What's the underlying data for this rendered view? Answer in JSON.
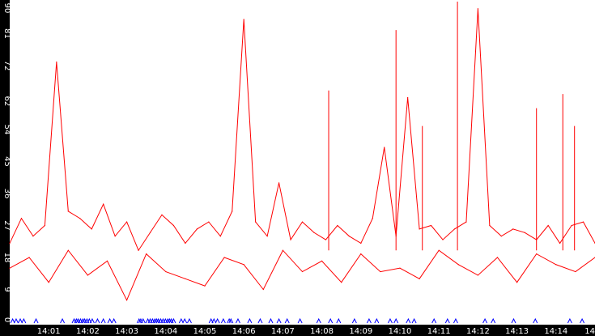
{
  "chart_data": {
    "type": "line",
    "title": "",
    "xlabel": "",
    "ylabel": "",
    "ylim": [
      0,
      90
    ],
    "y_ticks": [
      "0",
      "9",
      "18",
      "27",
      "36",
      "45",
      "54",
      "62",
      "72",
      "81",
      "90"
    ],
    "x_ticks": [
      "14:01",
      "14:02",
      "14:03",
      "14:04",
      "14:05",
      "14:06",
      "14:07",
      "14:08",
      "14:09",
      "14:10",
      "14:11",
      "14:12",
      "14:13",
      "14:14",
      "14"
    ],
    "x_range_minutes": [
      14.0,
      15.0
    ],
    "grid": false,
    "legend": "none",
    "background_color": "#ffffff",
    "axis_bar_color": "#000000",
    "axis_text_color": "#ffffff",
    "series": [
      {
        "color": "#ff0000",
        "x": [
          14.0,
          14.02,
          14.04,
          14.06,
          14.08,
          14.1,
          14.12,
          14.14,
          14.16,
          14.18,
          14.2,
          14.22,
          14.24,
          14.26,
          14.28,
          14.3,
          14.32,
          14.34,
          14.36,
          14.38,
          14.4,
          14.42,
          14.44,
          14.46,
          14.48,
          14.5,
          14.52,
          14.54,
          14.56,
          14.58,
          14.6,
          14.62,
          14.64,
          14.66,
          14.68,
          14.7,
          14.72,
          14.74,
          14.76,
          14.78,
          14.8,
          14.82,
          14.84,
          14.86,
          14.88,
          14.9,
          14.92,
          14.94,
          14.96,
          14.98,
          15.0
        ],
        "values": [
          22,
          29,
          24,
          27,
          73,
          31,
          29,
          26,
          33,
          24,
          28,
          20,
          25,
          30,
          27,
          22,
          26,
          28,
          24,
          31,
          85,
          28,
          24,
          39,
          23,
          28,
          25,
          23,
          27,
          24,
          22,
          29,
          49,
          24,
          63,
          26,
          27,
          23,
          26,
          28,
          88,
          27,
          24,
          26,
          25,
          23,
          27,
          22,
          27,
          28,
          22
        ]
      },
      {
        "color": "#ff0000",
        "x": [
          14.0,
          14.0333,
          14.0667,
          14.1,
          14.1333,
          14.1667,
          14.2,
          14.2333,
          14.2667,
          14.3,
          14.3333,
          14.3667,
          14.4,
          14.4333,
          14.4667,
          14.5,
          14.5333,
          14.5667,
          14.6,
          14.6333,
          14.6667,
          14.7,
          14.7333,
          14.7667,
          14.8,
          14.8333,
          14.8667,
          14.9,
          14.9333,
          14.9667,
          15.0
        ],
        "values": [
          15,
          18,
          11,
          20,
          13,
          17,
          6,
          19,
          14,
          12,
          10,
          18,
          16,
          9,
          20,
          14,
          17,
          11,
          19,
          14,
          15,
          12,
          20,
          16,
          13,
          18,
          11,
          19,
          16,
          14,
          18
        ]
      }
    ],
    "extra_peaks": [
      {
        "x": 14.545,
        "value": 65
      },
      {
        "x": 14.66,
        "value": 82
      },
      {
        "x": 14.705,
        "value": 55
      },
      {
        "x": 14.765,
        "value": 90
      },
      {
        "x": 14.9,
        "value": 60
      },
      {
        "x": 14.945,
        "value": 64
      },
      {
        "x": 14.965,
        "value": 55
      }
    ],
    "event_markers": {
      "color": "#0000ff",
      "shape": "triangle",
      "x": [
        14.005,
        14.011,
        14.018,
        14.024,
        14.045,
        14.09,
        14.11,
        14.114,
        14.117,
        14.121,
        14.125,
        14.128,
        14.132,
        14.136,
        14.141,
        14.15,
        14.16,
        14.171,
        14.178,
        14.221,
        14.224,
        14.228,
        14.236,
        14.24,
        14.244,
        14.248,
        14.251,
        14.254,
        14.258,
        14.262,
        14.266,
        14.27,
        14.273,
        14.276,
        14.28,
        14.293,
        14.299,
        14.307,
        14.344,
        14.349,
        14.355,
        14.365,
        14.375,
        14.378,
        14.39,
        14.41,
        14.428,
        14.446,
        14.46,
        14.474,
        14.496,
        14.528,
        14.548,
        14.562,
        14.589,
        14.614,
        14.627,
        14.65,
        14.66,
        14.681,
        14.691,
        14.725,
        14.748,
        14.762,
        14.812,
        14.826,
        14.861,
        14.898,
        14.957,
        14.978
      ]
    }
  }
}
